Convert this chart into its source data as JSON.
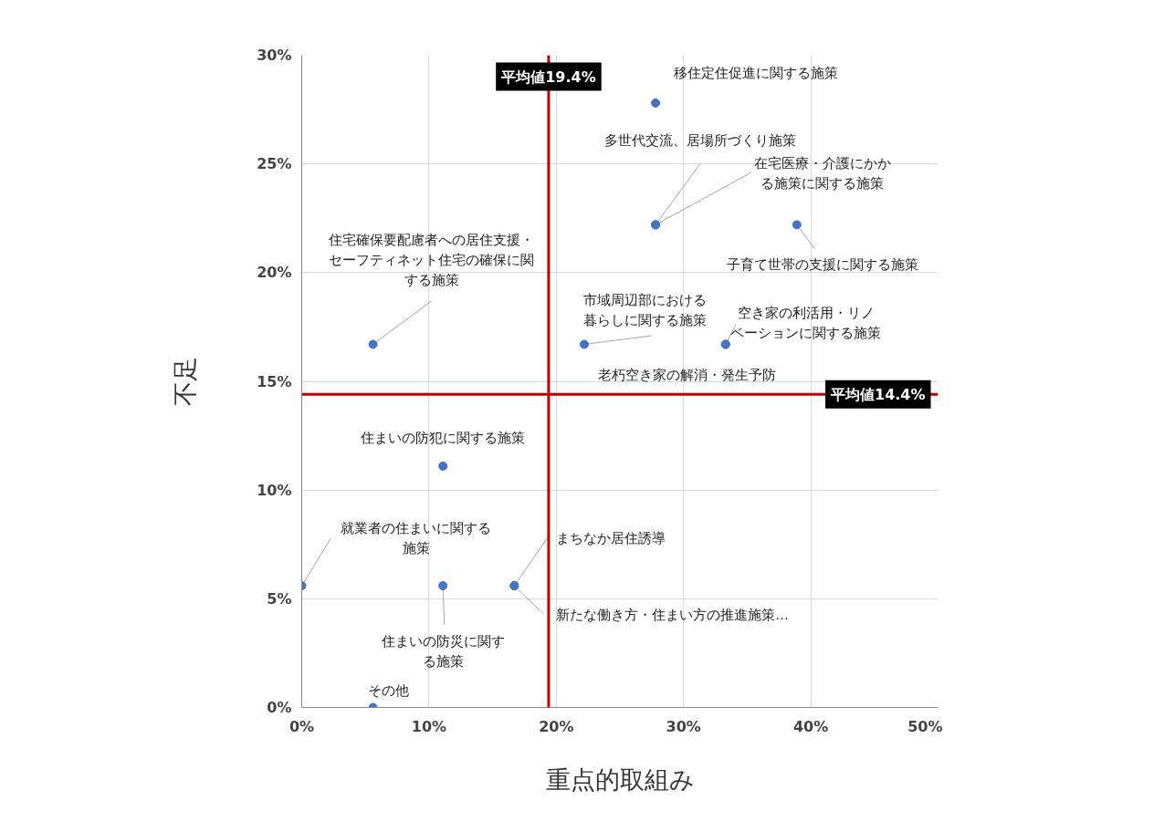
{
  "chart_data": {
    "type": "scatter",
    "xlabel": "重点的取組み",
    "ylabel": "不足",
    "xlim": [
      0,
      50
    ],
    "ylim": [
      0,
      30
    ],
    "xticks": [
      {
        "value": 0,
        "label": "0%"
      },
      {
        "value": 10,
        "label": "10%"
      },
      {
        "value": 20,
        "label": "20%"
      },
      {
        "value": 30,
        "label": "30%"
      },
      {
        "value": 40,
        "label": "40%"
      },
      {
        "value": 50,
        "label": "50%"
      }
    ],
    "yticks": [
      {
        "value": 0,
        "label": "0%"
      },
      {
        "value": 5,
        "label": "5%"
      },
      {
        "value": 10,
        "label": "10%"
      },
      {
        "value": 15,
        "label": "15%"
      },
      {
        "value": 20,
        "label": "20%"
      },
      {
        "value": 25,
        "label": "25%"
      },
      {
        "value": 30,
        "label": "30%"
      }
    ],
    "grid": true,
    "marker": "circle",
    "series": [
      {
        "color": "#4472c4",
        "x": [
          27.8,
          27.8,
          27.8,
          38.9,
          5.6,
          22.2,
          33.3,
          33.3,
          11.1,
          0,
          11.1,
          16.7,
          16.7,
          5.6
        ],
        "values": [
          27.8,
          22.2,
          22.2,
          22.2,
          16.7,
          16.7,
          16.7,
          16.7,
          11.1,
          5.6,
          5.6,
          5.6,
          5.6,
          0
        ],
        "value_labels": [
          "移住定住促進に関する施策",
          "多世代交流、居場所づくり施策",
          "在宅医療・介護にかかる施策に関する施策",
          "子育て世帯の支援に関する施策",
          "住宅確保要配慮者への居住支援・セーフティネット住宅の確保に関する施策",
          "市域周辺部における暮らしに関する施策",
          "空き家の利活用・リノベーションに関する施策",
          "老朽空き家の解消・発生予防",
          "住まいの防犯に関する施策",
          "就業者の住まいに関する施策",
          "住まいの防災に関する施策",
          "まちなか居住誘導",
          "新たな働き方・住まい方の推進施策…",
          "その他"
        ]
      }
    ],
    "ref_lines": [
      {
        "axis": "x",
        "value": 19.4,
        "label": "平均値19.4%",
        "color": "#c00000"
      },
      {
        "axis": "y",
        "value": 14.4,
        "label": "平均値14.4%",
        "color": "#c00000"
      }
    ]
  }
}
